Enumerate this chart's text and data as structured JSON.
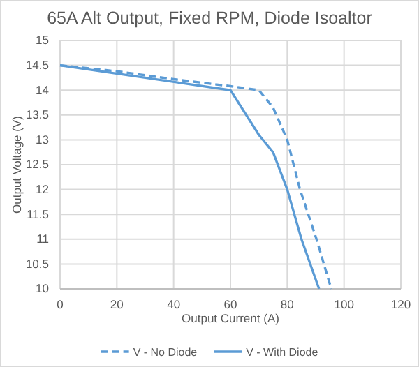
{
  "chart_data": {
    "type": "line",
    "title": "65A Alt Output, Fixed RPM, Diode Isoaltor",
    "xlabel": "Output Current (A)",
    "ylabel": "Output Voltage (V)",
    "xlim": [
      0,
      120
    ],
    "xticks": [
      0,
      20,
      40,
      60,
      80,
      100,
      120
    ],
    "ylim": [
      10,
      15
    ],
    "yticks": [
      10,
      10.5,
      11,
      11.5,
      12,
      12.5,
      13,
      13.5,
      14,
      14.5,
      15
    ],
    "grid": true,
    "legend": "bottom",
    "marker": "none",
    "series": [
      {
        "name": "V - No Diode",
        "color": "#5b9bd5",
        "line_style": "dashed",
        "x": [
          0,
          20,
          40,
          60,
          70,
          75,
          80,
          84.5,
          90.3,
          95.5
        ],
        "values": [
          14.5,
          14.38,
          14.22,
          14.08,
          14.0,
          13.65,
          13.0,
          12.0,
          11.0,
          10.0
        ]
      },
      {
        "name": "V - With Diode",
        "color": "#5b9bd5",
        "line_style": "solid",
        "x": [
          0,
          60,
          70,
          75,
          80,
          85,
          91.2
        ],
        "values": [
          14.5,
          14.0,
          13.1,
          12.75,
          12.0,
          11.0,
          10.0
        ]
      }
    ]
  }
}
